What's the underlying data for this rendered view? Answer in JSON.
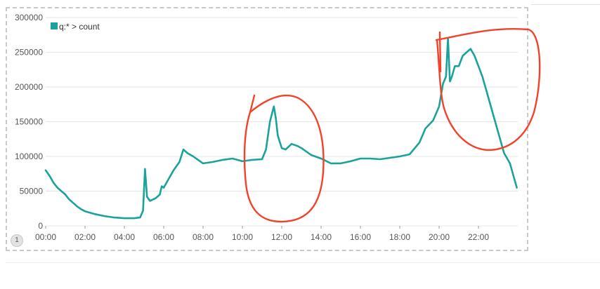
{
  "pagination": {
    "page": "1"
  },
  "chart_data": {
    "type": "line",
    "title": "",
    "xlabel": "",
    "ylabel": "",
    "legend": {
      "position": "top-left",
      "entries": [
        "q:* > count"
      ]
    },
    "colors": {
      "series": "#1aa39b",
      "annotation": "#f2432a",
      "grid": "#e6e6e6"
    },
    "grid": true,
    "xlim": [
      0,
      24
    ],
    "ylim": [
      0,
      300000
    ],
    "x_ticks": [
      "00:00",
      "02:00",
      "04:00",
      "06:00",
      "08:00",
      "10:00",
      "12:00",
      "14:00",
      "16:00",
      "18:00",
      "20:00",
      "22:00"
    ],
    "y_ticks": [
      "0",
      "50000",
      "100000",
      "150000",
      "200000",
      "250000",
      "300000"
    ],
    "series": [
      {
        "name": "q:* > count",
        "x": [
          0,
          0.2,
          0.4,
          0.6,
          0.8,
          1,
          1.2,
          1.4,
          1.6,
          1.8,
          2,
          2.5,
          3,
          3.5,
          4,
          4.5,
          4.8,
          4.95,
          5.05,
          5.15,
          5.3,
          5.6,
          5.8,
          5.9,
          6,
          6.2,
          6.5,
          6.8,
          7,
          7.2,
          7.5,
          8,
          8.5,
          9,
          9.5,
          10,
          10.5,
          11,
          11.2,
          11.4,
          11.6,
          11.7,
          11.8,
          12,
          12.2,
          12.5,
          12.8,
          13,
          13.5,
          14,
          14.5,
          15,
          15.5,
          16,
          16.5,
          17,
          17.5,
          18,
          18.5,
          19,
          19.3,
          19.7,
          20,
          20.2,
          20.35,
          20.45,
          20.55,
          20.65,
          20.8,
          21,
          21.2,
          21.4,
          21.6,
          21.8,
          22,
          22.2,
          22.4,
          22.7,
          23,
          23.3,
          23.6,
          23.8,
          23.95
        ],
        "y": [
          80000,
          72000,
          62000,
          55000,
          50000,
          45000,
          38000,
          33000,
          28000,
          24000,
          21000,
          17000,
          14000,
          12000,
          11000,
          11000,
          12000,
          22000,
          82000,
          42000,
          36000,
          40000,
          45000,
          57000,
          55000,
          65000,
          80000,
          92000,
          110000,
          105000,
          100000,
          90000,
          92000,
          95000,
          97000,
          93000,
          95000,
          96000,
          110000,
          150000,
          172000,
          155000,
          130000,
          112000,
          110000,
          118000,
          115000,
          112000,
          102000,
          97000,
          90000,
          90000,
          93000,
          97000,
          97000,
          96000,
          98000,
          100000,
          103000,
          120000,
          140000,
          152000,
          172000,
          205000,
          215000,
          270000,
          208000,
          215000,
          230000,
          230000,
          245000,
          250000,
          255000,
          245000,
          230000,
          215000,
          195000,
          165000,
          135000,
          105000,
          90000,
          70000,
          55000
        ]
      }
    ]
  }
}
